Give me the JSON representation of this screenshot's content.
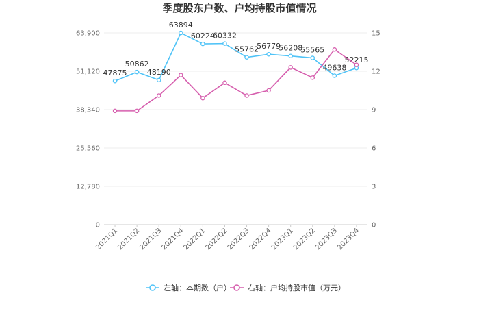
{
  "chart_data": {
    "type": "line",
    "title": "季度股东户数、户均持股市值情况",
    "categories": [
      "2021Q1",
      "2021Q2",
      "2021Q3",
      "2021Q4",
      "2022Q1",
      "2022Q2",
      "2022Q3",
      "2022Q4",
      "2023Q1",
      "2023Q2",
      "2023Q3",
      "2023Q4"
    ],
    "left_axis": {
      "ylim": [
        0,
        63900
      ],
      "ticks": [
        "0",
        "12,780",
        "25,560",
        "38,340",
        "51,120",
        "63,900"
      ]
    },
    "right_axis": {
      "ylim": [
        0,
        15
      ],
      "ticks": [
        "0",
        "3",
        "6",
        "9",
        "12",
        "15"
      ]
    },
    "series": [
      {
        "name": "左轴：本期数（户）",
        "axis": "left",
        "color": "#4fc3f7",
        "values": [
          47875,
          50862,
          48190,
          63894,
          60224,
          60332,
          55762,
          56779,
          56208,
          55565,
          49638,
          52215
        ],
        "labels": [
          "47875",
          "50862",
          "48190",
          "63894",
          "60224",
          "60332",
          "55762",
          "56779",
          "56208",
          "55565",
          "49638",
          "52215"
        ]
      },
      {
        "name": "右轴：户均持股市值（万元）",
        "axis": "right",
        "color": "#d65fae",
        "values": [
          8.9,
          8.9,
          10.1,
          11.7,
          9.9,
          11.1,
          10.1,
          10.5,
          12.3,
          11.5,
          13.7,
          12.5
        ]
      }
    ],
    "grid": true,
    "legend_position": "bottom"
  }
}
